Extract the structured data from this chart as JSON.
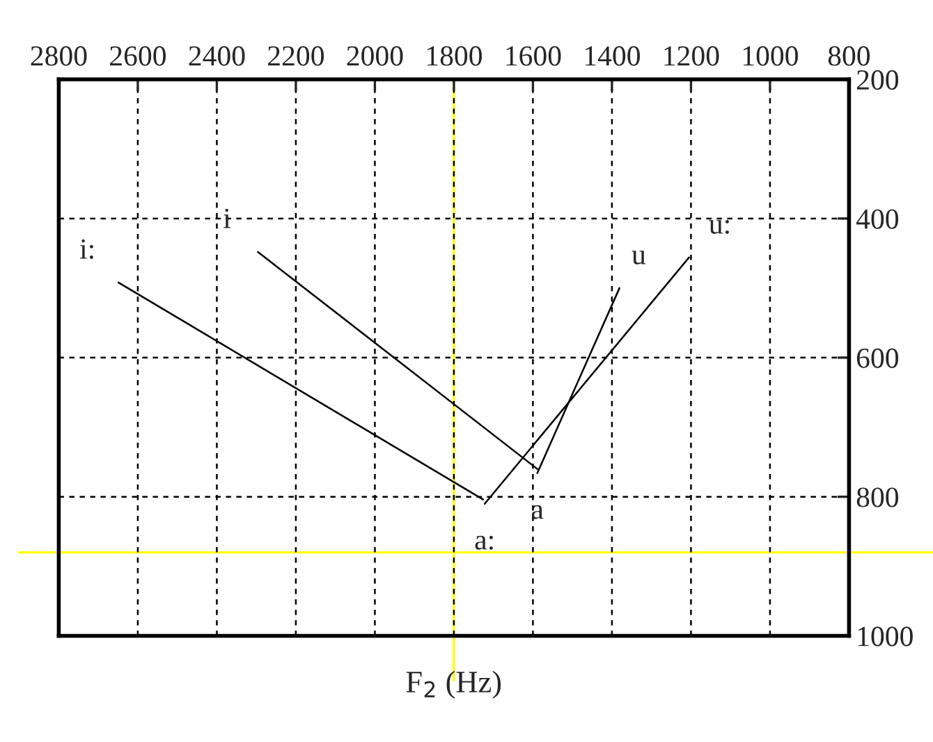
{
  "chart_data": {
    "type": "line",
    "xlabel": "F$_{2}$ (Hz)",
    "xlim": [
      2800,
      800
    ],
    "xticks": [
      2800,
      2600,
      2400,
      2200,
      2000,
      1800,
      1600,
      1400,
      1200,
      1000,
      800
    ],
    "ylim": [
      1000,
      200
    ],
    "yticks": [
      200,
      400,
      600,
      800,
      1000
    ],
    "grid": true,
    "marker": "none",
    "line_style": "solid",
    "series": [
      {
        "color": "#000000",
        "x": [
          2649,
          1726
        ],
        "values": [
          492,
          804
        ]
      },
      {
        "color": "#000000",
        "x": [
          2296,
          1589
        ],
        "values": [
          448,
          760
        ]
      },
      {
        "color": "#000000",
        "x": [
          1381,
          1589
        ],
        "values": [
          500,
          766
        ]
      },
      {
        "color": "#000000",
        "x": [
          1205,
          1722
        ],
        "values": [
          456,
          810
        ]
      }
    ],
    "annotations": [
      {
        "text": "i:",
        "x": 2649,
        "y": 492
      },
      {
        "text": "i",
        "x": 2296,
        "y": 448
      },
      {
        "text": "u",
        "x": 1381,
        "y": 500
      },
      {
        "text": "u:",
        "x": 1205,
        "y": 456
      },
      {
        "text": "a:",
        "x": 1722,
        "y": 810
      },
      {
        "text": "a",
        "x": 1589,
        "y": 766
      }
    ],
    "ref_lines": [
      {
        "axis": "x",
        "value": 1800,
        "color": "#ffff00"
      },
      {
        "axis": "y",
        "value": 880,
        "color": "#ffff00"
      }
    ]
  }
}
